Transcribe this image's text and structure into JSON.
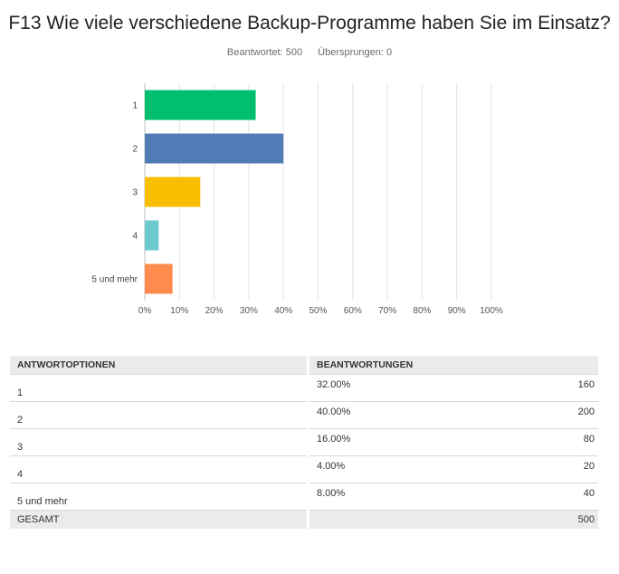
{
  "title": "F13 Wie viele verschiedene Backup-Programme haben Sie im Einsatz?",
  "stats": {
    "answered": "Beantwortet: 500",
    "skipped": "Übersprungen: 0"
  },
  "chart_data": {
    "type": "bar",
    "orientation": "horizontal",
    "categories": [
      "1",
      "2",
      "3",
      "4",
      "5 und mehr"
    ],
    "values": [
      32,
      40,
      16,
      4,
      8
    ],
    "colors": [
      "#00bf6f",
      "#507cb6",
      "#f9be00",
      "#6bc8cd",
      "#ff8b4f"
    ],
    "xlim": [
      0,
      100
    ],
    "x_ticks": [
      "0%",
      "10%",
      "20%",
      "30%",
      "40%",
      "50%",
      "60%",
      "70%",
      "80%",
      "90%",
      "100%"
    ],
    "grid": true
  },
  "table": {
    "headers": [
      "ANTWORTOPTIONEN",
      "BEANTWORTUNGEN"
    ],
    "rows": [
      {
        "option": "1",
        "percent": "32.00%",
        "count": "160"
      },
      {
        "option": "2",
        "percent": "40.00%",
        "count": "200"
      },
      {
        "option": "3",
        "percent": "16.00%",
        "count": "80"
      },
      {
        "option": "4",
        "percent": "4.00%",
        "count": "20"
      },
      {
        "option": "5 und mehr",
        "percent": "8.00%",
        "count": "40"
      }
    ],
    "total_label": "GESAMT",
    "total_count": "500"
  }
}
